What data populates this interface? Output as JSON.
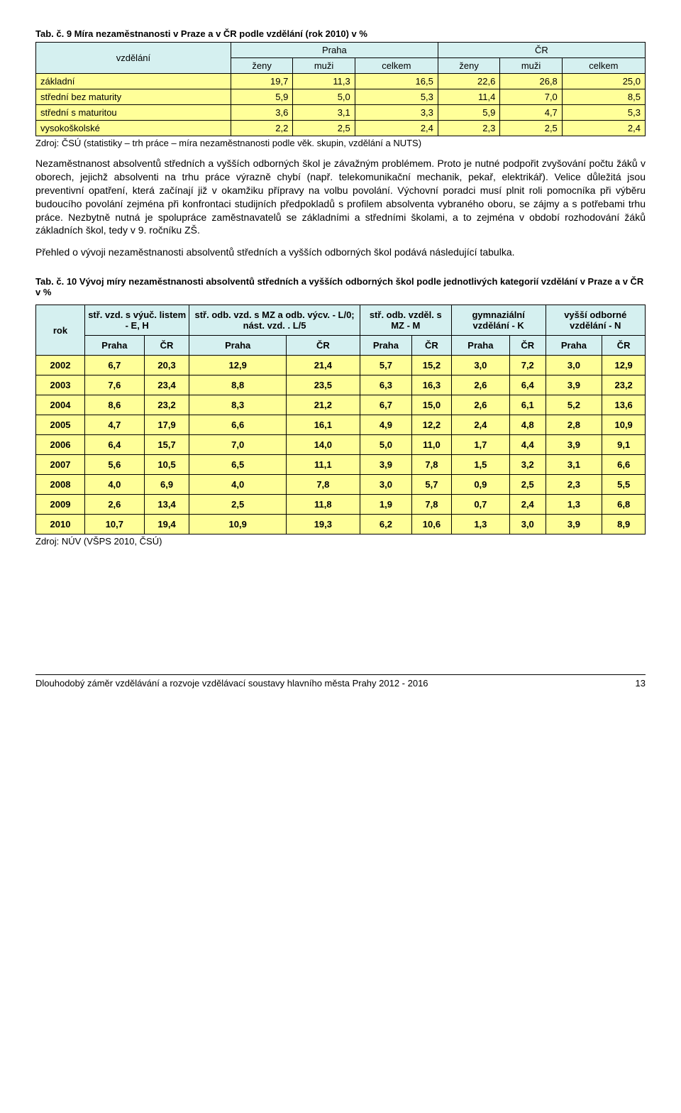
{
  "table1": {
    "caption": "Tab. č. 9 Míra nezaměstnanosti v Praze a v ČR podle vzdělání (rok 2010) v %",
    "colgroup_label": "vzdělání",
    "regions": [
      "Praha",
      "ČR"
    ],
    "subheaders": [
      "ženy",
      "muži",
      "celkem",
      "ženy",
      "muži",
      "celkem"
    ],
    "rows": [
      {
        "label": "základní",
        "vals": [
          "19,7",
          "11,3",
          "16,5",
          "22,6",
          "26,8",
          "25,0"
        ]
      },
      {
        "label": "střední bez maturity",
        "vals": [
          "5,9",
          "5,0",
          "5,3",
          "11,4",
          "7,0",
          "8,5"
        ]
      },
      {
        "label": "střední s maturitou",
        "vals": [
          "3,6",
          "3,1",
          "3,3",
          "5,9",
          "4,7",
          "5,3"
        ]
      },
      {
        "label": "vysokoškolské",
        "vals": [
          "2,2",
          "2,5",
          "2,4",
          "2,3",
          "2,5",
          "2,4"
        ]
      }
    ],
    "source": "Zdroj: ČSÚ (statistiky – trh práce – míra nezaměstnanosti podle věk. skupin, vzdělání a NUTS)",
    "header_bg": "#d5f0f0",
    "row_bg": "#ffff99"
  },
  "para1": "Nezaměstnanost absolventů středních a vyšších odborných škol je závažným problémem. Proto je nutné podpořit zvyšování počtu žáků v oborech, jejichž absolventi na trhu práce výrazně chybí (např. telekomunikační mechanik, pekař, elektrikář). Velice důležitá jsou preventivní opatření, která začínají již v okamžiku přípravy na volbu povolání. Výchovní poradci musí plnit roli pomocníka při výběru budoucího povolání zejména při konfrontaci studijních předpokladů s profilem absolventa vybraného oboru, se zájmy a s potřebami trhu práce. Nezbytně nutná je spolupráce zaměstnavatelů se základními a středními školami, a to zejména v období rozhodování žáků základních škol, tedy v 9. ročníku ZŠ.",
  "para2": "Přehled o vývoji nezaměstnanosti absolventů středních a vyšších odborných škol podává následující tabulka.",
  "table2": {
    "caption": "Tab. č. 10 Vývoj míry nezaměstnanosti absolventů středních a vyšších odborných škol podle jednotlivých kategorií vzdělání v Praze a v ČR v %",
    "rok_label": "rok",
    "groups": [
      "stř. vzd. s výuč. listem - E, H",
      "stř. odb. vzd. s MZ a odb. výcv. - L/0; nást. vzd. . L/5",
      "stř. odb. vzděl. s MZ - M",
      "gymnaziální vzdělání    - K",
      "vyšší odborné vzdělání - N"
    ],
    "subpair": [
      "Praha",
      "ČR"
    ],
    "rows": [
      {
        "y": "2002",
        "v": [
          "6,7",
          "20,3",
          "12,9",
          "21,4",
          "5,7",
          "15,2",
          "3,0",
          "7,2",
          "3,0",
          "12,9"
        ]
      },
      {
        "y": "2003",
        "v": [
          "7,6",
          "23,4",
          "8,8",
          "23,5",
          "6,3",
          "16,3",
          "2,6",
          "6,4",
          "3,9",
          "23,2"
        ]
      },
      {
        "y": "2004",
        "v": [
          "8,6",
          "23,2",
          "8,3",
          "21,2",
          "6,7",
          "15,0",
          "2,6",
          "6,1",
          "5,2",
          "13,6"
        ]
      },
      {
        "y": "2005",
        "v": [
          "4,7",
          "17,9",
          "6,6",
          "16,1",
          "4,9",
          "12,2",
          "2,4",
          "4,8",
          "2,8",
          "10,9"
        ]
      },
      {
        "y": "2006",
        "v": [
          "6,4",
          "15,7",
          "7,0",
          "14,0",
          "5,0",
          "11,0",
          "1,7",
          "4,4",
          "3,9",
          "9,1"
        ]
      },
      {
        "y": "2007",
        "v": [
          "5,6",
          "10,5",
          "6,5",
          "11,1",
          "3,9",
          "7,8",
          "1,5",
          "3,2",
          "3,1",
          "6,6"
        ]
      },
      {
        "y": "2008",
        "v": [
          "4,0",
          "6,9",
          "4,0",
          "7,8",
          "3,0",
          "5,7",
          "0,9",
          "2,5",
          "2,3",
          "5,5"
        ]
      },
      {
        "y": "2009",
        "v": [
          "2,6",
          "13,4",
          "2,5",
          "11,8",
          "1,9",
          "7,8",
          "0,7",
          "2,4",
          "1,3",
          "6,8"
        ]
      },
      {
        "y": "2010",
        "v": [
          "10,7",
          "19,4",
          "10,9",
          "19,3",
          "6,2",
          "10,6",
          "1,3",
          "3,0",
          "3,9",
          "8,9"
        ]
      }
    ],
    "source": "Zdroj: NÚV (VŠPS 2010, ČSÚ)",
    "header_bg": "#d5f0f0",
    "row_bg": "#ffff99"
  },
  "footer": {
    "text": "Dlouhodobý záměr vzdělávání a rozvoje vzdělávací soustavy hlavního města Prahy 2012 - 2016",
    "page": "13"
  }
}
